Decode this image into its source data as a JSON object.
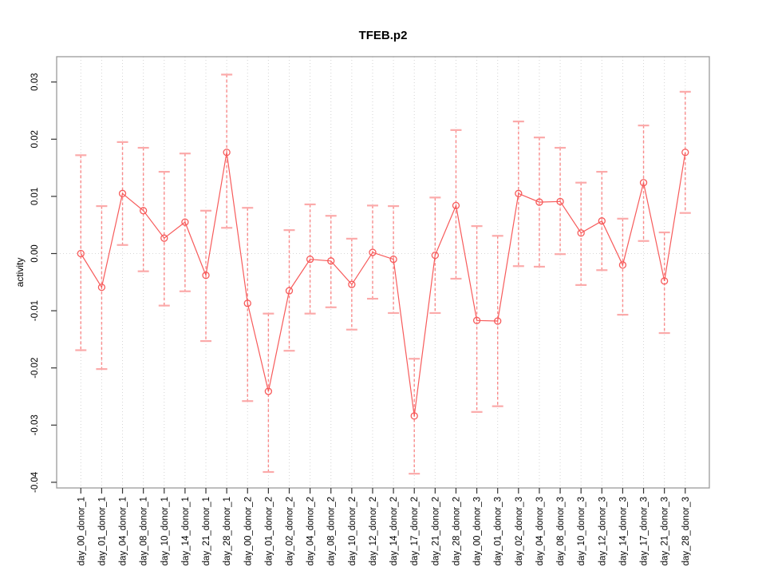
{
  "chart_data": {
    "type": "line",
    "title": "TFEB.p2",
    "xlabel": "",
    "ylabel": "activity",
    "ylim": [
      -0.04,
      0.03
    ],
    "yticks": [
      0.03,
      0.02,
      0.01,
      0,
      -0.01,
      -0.02,
      -0.03,
      -0.04
    ],
    "grid": "vertical dotted gridline at every x position; dotted horizontal line at y=0; full box frame",
    "legend_position": "none",
    "point_style": "open circle with vertical dashed error bars and horizontal end caps, points connected by a continuous line",
    "categories": [
      "day_00_donor_1",
      "day_01_donor_1",
      "day_04_donor_1",
      "day_08_donor_1",
      "day_10_donor_1",
      "day_14_donor_1",
      "day_21_donor_1",
      "day_28_donor_1",
      "day_00_donor_2",
      "day_01_donor_2",
      "day_02_donor_2",
      "day_04_donor_2",
      "day_08_donor_2",
      "day_10_donor_2",
      "day_12_donor_2",
      "day_14_donor_2",
      "day_17_donor_2",
      "day_21_donor_2",
      "day_28_donor_2",
      "day_00_donor_3",
      "day_01_donor_3",
      "day_02_donor_3",
      "day_04_donor_3",
      "day_08_donor_3",
      "day_10_donor_3",
      "day_12_donor_3",
      "day_14_donor_3",
      "day_17_donor_3",
      "day_21_donor_3",
      "day_28_donor_3"
    ],
    "series": [
      {
        "name": "activity",
        "values": [
          0.0,
          -0.0059,
          0.0105,
          0.0075,
          0.0027,
          0.0055,
          -0.0038,
          0.0177,
          -0.0087,
          -0.0241,
          -0.0065,
          -0.001,
          -0.0013,
          -0.0054,
          0.0002,
          -0.001,
          -0.0284,
          -0.0003,
          0.0084,
          -0.0117,
          -0.0118,
          0.0105,
          0.009,
          0.0091,
          0.0036,
          0.0057,
          -0.002,
          0.0124,
          -0.0048,
          0.0177
        ],
        "upper": [
          0.0172,
          0.0083,
          0.0195,
          0.0185,
          0.0143,
          0.0175,
          0.0075,
          0.0313,
          0.008,
          -0.0105,
          0.0041,
          0.0086,
          0.0066,
          0.0026,
          0.0084,
          0.0083,
          -0.0184,
          0.0098,
          0.0216,
          0.0048,
          0.0031,
          0.0231,
          0.0203,
          0.0185,
          0.0124,
          0.0143,
          0.0061,
          0.0224,
          0.0037,
          0.0283
        ],
        "lower": [
          -0.0169,
          -0.0202,
          0.0015,
          -0.0031,
          -0.0091,
          -0.0066,
          -0.0153,
          0.0045,
          -0.0258,
          -0.0382,
          -0.017,
          -0.0105,
          -0.0094,
          -0.0133,
          -0.0079,
          -0.0104,
          -0.0385,
          -0.0104,
          -0.0044,
          -0.0277,
          -0.0267,
          -0.0022,
          -0.0023,
          -0.0001,
          -0.0055,
          -0.0029,
          -0.0107,
          0.0022,
          -0.0139,
          0.0071
        ]
      }
    ],
    "colors": {
      "line": "#F75B5B",
      "point": "#F75B5B",
      "error_bar": "#F98A8A",
      "error_cap": "#FBAAAA",
      "grid": "#D4D4D4",
      "zero_line": "#D8D8D8",
      "box": "#9A9A9A",
      "tick": "#333333",
      "label": "#000000"
    }
  }
}
